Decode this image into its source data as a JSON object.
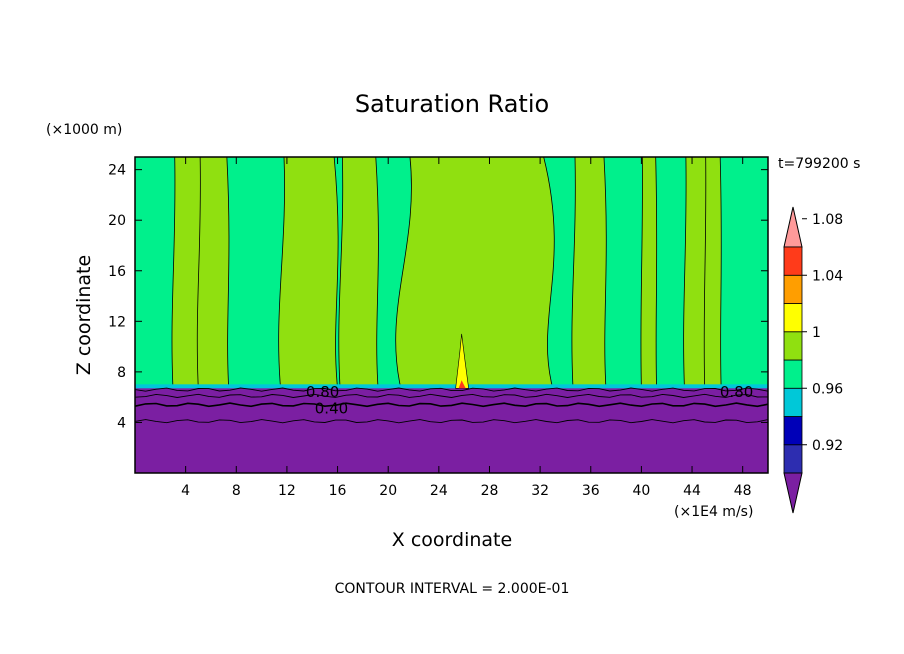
{
  "chart_data": {
    "type": "heatmap",
    "title": "Saturation Ratio",
    "xlabel": "X coordinate",
    "ylabel": "Z coordinate",
    "x_unit": "(×1E4 m/s)",
    "y_unit": "(×1000 m)",
    "time_label": "t=799200 s",
    "footer": "CONTOUR INTERVAL = 2.000E-01",
    "xlim": [
      0,
      50
    ],
    "ylim": [
      0,
      25
    ],
    "x_ticks": [
      4,
      8,
      12,
      16,
      20,
      24,
      28,
      32,
      36,
      40,
      44,
      48
    ],
    "y_ticks": [
      4,
      8,
      12,
      16,
      20,
      24
    ],
    "colorbar": {
      "levels": [
        0.92,
        0.96,
        1,
        1.04,
        1.08
      ],
      "labels": [
        "0.92",
        "0.96",
        "1",
        "1.04",
        "1.08"
      ],
      "colors": [
        "#7b1fa2",
        "#2d2db0",
        "#0000b8",
        "#00c8d8",
        "#00f08c",
        "#90e010",
        "#ffff00",
        "#ff9e00",
        "#ff3b1a",
        "#ff9a9a"
      ]
    },
    "contour_labels": [
      {
        "text": "0.80",
        "x": 13.5,
        "z": 6.5
      },
      {
        "text": "0.40",
        "x": 14.2,
        "z": 5.2
      },
      {
        "text": "0.80",
        "x": 46.2,
        "z": 6.5
      }
    ],
    "layers": [
      {
        "name": "saturation < 0.92 (lower layer)",
        "z_top": 6.7,
        "color": "#7b1fa2"
      },
      {
        "name": "boundary band 0.96–1",
        "z": 6.8,
        "color": "#00c8d8"
      },
      {
        "name": "0.96–1 field",
        "color": "#00f08c"
      },
      {
        "name": "1–1.04 columns",
        "color": "#90e010"
      },
      {
        "name": "1.04–1.08 plume",
        "x": 25.8,
        "z_top": 11,
        "color": "#ffff00"
      }
    ],
    "columns_1_to_1_04": [
      {
        "x0": 3.0,
        "x1": 5.3
      },
      {
        "x0": 5.0,
        "x1": 7.4
      },
      {
        "x0": 11.5,
        "x1": 16.0
      },
      {
        "x0": 16.6,
        "x1": 18.3
      },
      {
        "x0": 16.2,
        "x1": 19.2
      },
      {
        "x0": 21.0,
        "x1": 33.0
      },
      {
        "x0": 34.6,
        "x1": 37.2
      },
      {
        "x0": 40.0,
        "x1": 41.2
      },
      {
        "x0": 43.4,
        "x1": 45.3
      },
      {
        "x0": 45.0,
        "x1": 46.3
      }
    ]
  }
}
